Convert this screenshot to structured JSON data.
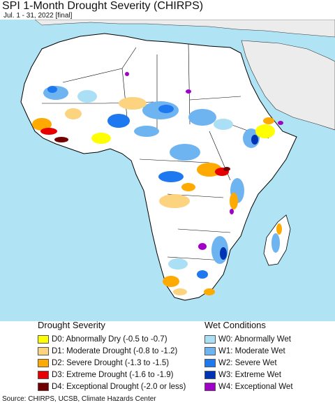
{
  "title": "SPI 1-Month Drought Severity (CHIRPS)",
  "subtitle": "Jul. 1 - 31, 2022 [final]",
  "source": "Source: CHIRPS, UCSB, Climate Hazards Center",
  "colors": {
    "ocean": "#b0e4f4",
    "land": "#ffffff",
    "offmap": "#ececec",
    "border": "#000000"
  },
  "legend": {
    "drought": {
      "heading": "Drought Severity",
      "items": [
        {
          "label": "D0: Abnormally Dry (-0.5 to -0.7)",
          "color": "#ffff00"
        },
        {
          "label": "D1: Moderate Drought (-0.8 to -1.2)",
          "color": "#fcd37f"
        },
        {
          "label": "D2: Severe Drought (-1.3 to -1.5)",
          "color": "#ffaa00"
        },
        {
          "label": "D3: Extreme Drought (-1.6 to -1.9)",
          "color": "#e60000"
        },
        {
          "label": "D4: Exceptional Drought (-2.0 or less)",
          "color": "#730000"
        }
      ]
    },
    "wet": {
      "heading": "Wet Conditions",
      "items": [
        {
          "label": "W0: Abnormally Wet",
          "color": "#aadff5"
        },
        {
          "label": "W1: Moderate Wet",
          "color": "#6eb4f0"
        },
        {
          "label": "W2: Severe Wet",
          "color": "#1e78f0"
        },
        {
          "label": "W3: Extreme Wet",
          "color": "#0032b4"
        },
        {
          "label": "W4: Exceptional Wet",
          "color": "#a000c8"
        }
      ]
    }
  }
}
